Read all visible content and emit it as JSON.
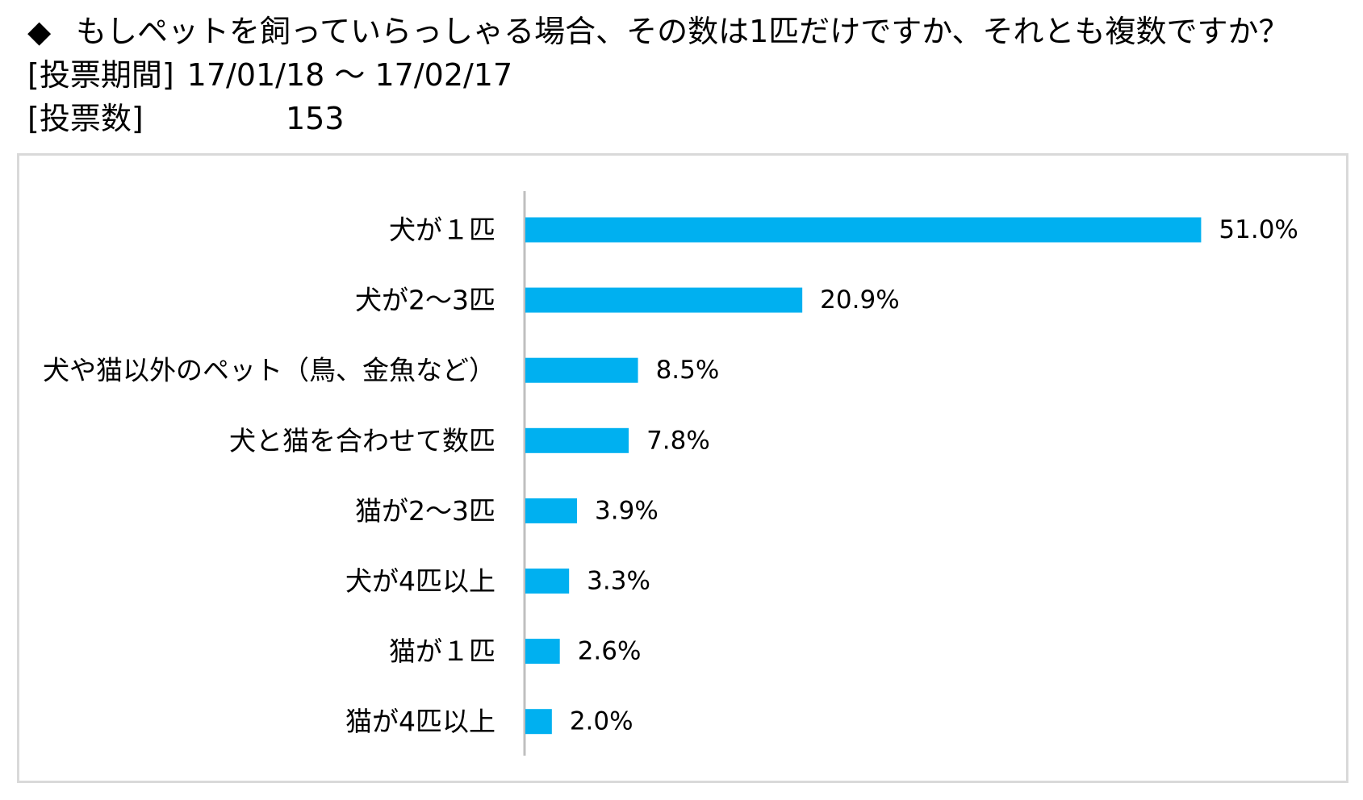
{
  "header": {
    "bullet": "◆",
    "question": "もしペットを飼っていらっしゃる場合、その数は1匹だけですか、それとも複数ですか？",
    "period_label": "[投票期間]",
    "period_value": "17/01/18 ～ 17/02/17",
    "votes_label": "[投票数]",
    "votes_value": "153"
  },
  "colors": {
    "bar": "#00b0f0",
    "axis": "#bfbfbf",
    "frame": "#d9d9d9"
  },
  "chart_data": {
    "type": "bar",
    "orientation": "horizontal",
    "categories": [
      "犬が１匹",
      "犬が2～3匹",
      "犬や猫以外のペット（鳥、金魚など）",
      "犬と猫を合わせて数匹",
      "猫が2～3匹",
      "犬が4匹以上",
      "猫が１匹",
      "猫が4匹以上"
    ],
    "values": [
      51.0,
      20.9,
      8.5,
      7.8,
      3.9,
      3.3,
      2.6,
      2.0
    ],
    "value_labels": [
      "51.0%",
      "20.9%",
      "8.5%",
      "7.8%",
      "3.9%",
      "3.3%",
      "2.6%",
      "2.0%"
    ],
    "unit": "%",
    "xlim": [
      0,
      55
    ],
    "grid": false,
    "legend": "none",
    "title": "",
    "xlabel": "",
    "ylabel": ""
  }
}
